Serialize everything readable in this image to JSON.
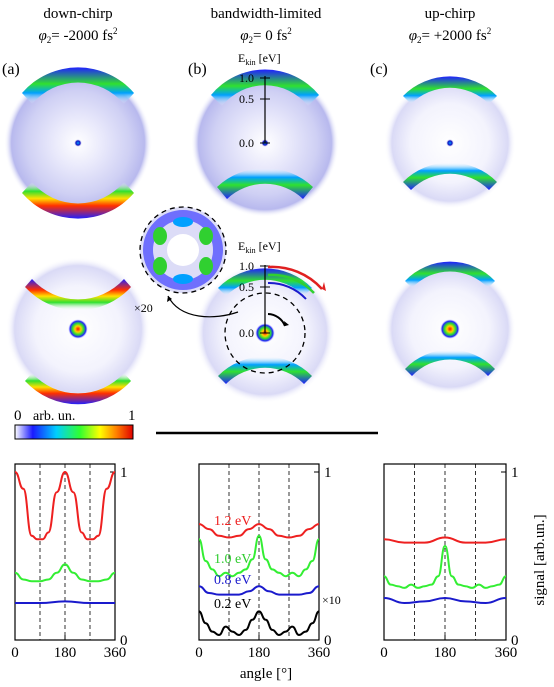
{
  "columns": [
    {
      "panel": "(a)",
      "title": "down-chirp",
      "phase_prefix": "= -2000 fs"
    },
    {
      "panel": "(b)",
      "title": "bandwidth-limited",
      "phase_prefix": "= 0 fs"
    },
    {
      "panel": "(c)",
      "title": "up-chirp",
      "phase_prefix": "= +2000 fs"
    }
  ],
  "phase_symbol": "φ",
  "phase_sub": "2",
  "phase_sup": "2",
  "ekin_label": "E",
  "ekin_sub": "kin",
  "ekin_unit": " [eV]",
  "ekin_ticks": [
    "1.0",
    "0.5",
    "0.0"
  ],
  "zoom_label": "×20",
  "colorbar": {
    "label": "arb. un.",
    "min": "0",
    "max": "1",
    "colors": [
      "#ffffff",
      "#1a1aff",
      "#00cfff",
      "#30ff30",
      "#ffff00",
      "#ff7f00",
      "#e00000"
    ]
  },
  "x_label": "angle [°]",
  "y_label": "signal [arb.un.]",
  "x_ticks": [
    "0",
    "180",
    "360"
  ],
  "y_ticks": [
    "0",
    "1"
  ],
  "scale_note": "×10",
  "energy_labels": [
    "1.2 eV",
    "1.0 eV",
    "0.8 eV",
    "0.2 eV"
  ],
  "series_colors": {
    "1.2 eV": "#ee2020",
    "1.0 eV": "#33ee33",
    "0.8 eV": "#1a1acc",
    "0.2 eV": "#000000"
  },
  "chart_data": [
    {
      "type": "line",
      "panel": "down-chirp",
      "xlim": [
        0,
        360
      ],
      "ylim": [
        0,
        1
      ],
      "series": [
        {
          "name": "1.2 eV",
          "x": [
            0,
            30,
            60,
            80,
            100,
            120,
            150,
            180,
            210,
            240,
            260,
            280,
            300,
            330,
            360
          ],
          "values": [
            1.0,
            0.9,
            0.62,
            0.6,
            0.6,
            0.64,
            0.88,
            1.0,
            0.88,
            0.64,
            0.6,
            0.6,
            0.62,
            0.9,
            1.0
          ]
        },
        {
          "name": "1.0 eV",
          "x": [
            0,
            30,
            60,
            90,
            120,
            150,
            180,
            210,
            240,
            270,
            300,
            330,
            360
          ],
          "values": [
            0.4,
            0.36,
            0.35,
            0.35,
            0.36,
            0.4,
            0.45,
            0.4,
            0.36,
            0.35,
            0.35,
            0.36,
            0.4
          ]
        },
        {
          "name": "0.8 eV",
          "x": [
            0,
            90,
            180,
            270,
            360
          ],
          "values": [
            0.22,
            0.22,
            0.23,
            0.22,
            0.22
          ]
        }
      ]
    },
    {
      "type": "line",
      "panel": "bandwidth-limited",
      "xlim": [
        0,
        360
      ],
      "ylim": [
        0,
        1
      ],
      "series": [
        {
          "name": "1.2 eV",
          "x": [
            0,
            30,
            60,
            90,
            120,
            150,
            180,
            210,
            240,
            270,
            300,
            330,
            360
          ],
          "values": [
            0.69,
            0.66,
            0.62,
            0.61,
            0.62,
            0.66,
            0.69,
            0.66,
            0.62,
            0.61,
            0.62,
            0.66,
            0.69
          ]
        },
        {
          "name": "1.0 eV",
          "x": [
            0,
            20,
            40,
            60,
            80,
            100,
            120,
            140,
            160,
            180,
            200,
            220,
            240,
            260,
            280,
            300,
            320,
            340,
            360
          ],
          "values": [
            0.6,
            0.47,
            0.42,
            0.38,
            0.4,
            0.38,
            0.4,
            0.42,
            0.48,
            0.62,
            0.48,
            0.42,
            0.4,
            0.38,
            0.4,
            0.38,
            0.42,
            0.47,
            0.6
          ]
        },
        {
          "name": "0.8 eV",
          "x": [
            0,
            30,
            60,
            90,
            120,
            150,
            180,
            210,
            240,
            270,
            300,
            330,
            360
          ],
          "values": [
            0.32,
            0.28,
            0.27,
            0.27,
            0.27,
            0.29,
            0.32,
            0.29,
            0.27,
            0.27,
            0.27,
            0.28,
            0.32
          ]
        },
        {
          "name": "0.2 eV",
          "x": [
            0,
            20,
            40,
            60,
            80,
            100,
            120,
            140,
            160,
            180,
            200,
            220,
            240,
            260,
            280,
            300,
            320,
            340,
            360
          ],
          "values": [
            0.17,
            0.1,
            0.05,
            0.03,
            0.08,
            0.05,
            0.03,
            0.06,
            0.12,
            0.17,
            0.12,
            0.06,
            0.03,
            0.05,
            0.08,
            0.03,
            0.05,
            0.1,
            0.17
          ]
        }
      ]
    },
    {
      "type": "line",
      "panel": "up-chirp",
      "xlim": [
        0,
        360
      ],
      "ylim": [
        0,
        1
      ],
      "series": [
        {
          "name": "1.2 eV",
          "x": [
            0,
            60,
            120,
            180,
            240,
            300,
            360
          ],
          "values": [
            0.6,
            0.58,
            0.58,
            0.61,
            0.58,
            0.58,
            0.6
          ]
        },
        {
          "name": "1.0 eV",
          "x": [
            0,
            20,
            40,
            60,
            80,
            100,
            120,
            140,
            160,
            180,
            200,
            220,
            240,
            260,
            280,
            300,
            320,
            340,
            360
          ],
          "values": [
            0.38,
            0.33,
            0.32,
            0.31,
            0.33,
            0.31,
            0.32,
            0.33,
            0.38,
            0.56,
            0.38,
            0.33,
            0.32,
            0.31,
            0.33,
            0.31,
            0.32,
            0.33,
            0.38
          ]
        },
        {
          "name": "0.8 eV",
          "x": [
            0,
            60,
            120,
            180,
            240,
            300,
            360
          ],
          "values": [
            0.25,
            0.22,
            0.23,
            0.25,
            0.23,
            0.22,
            0.25
          ]
        }
      ]
    }
  ]
}
